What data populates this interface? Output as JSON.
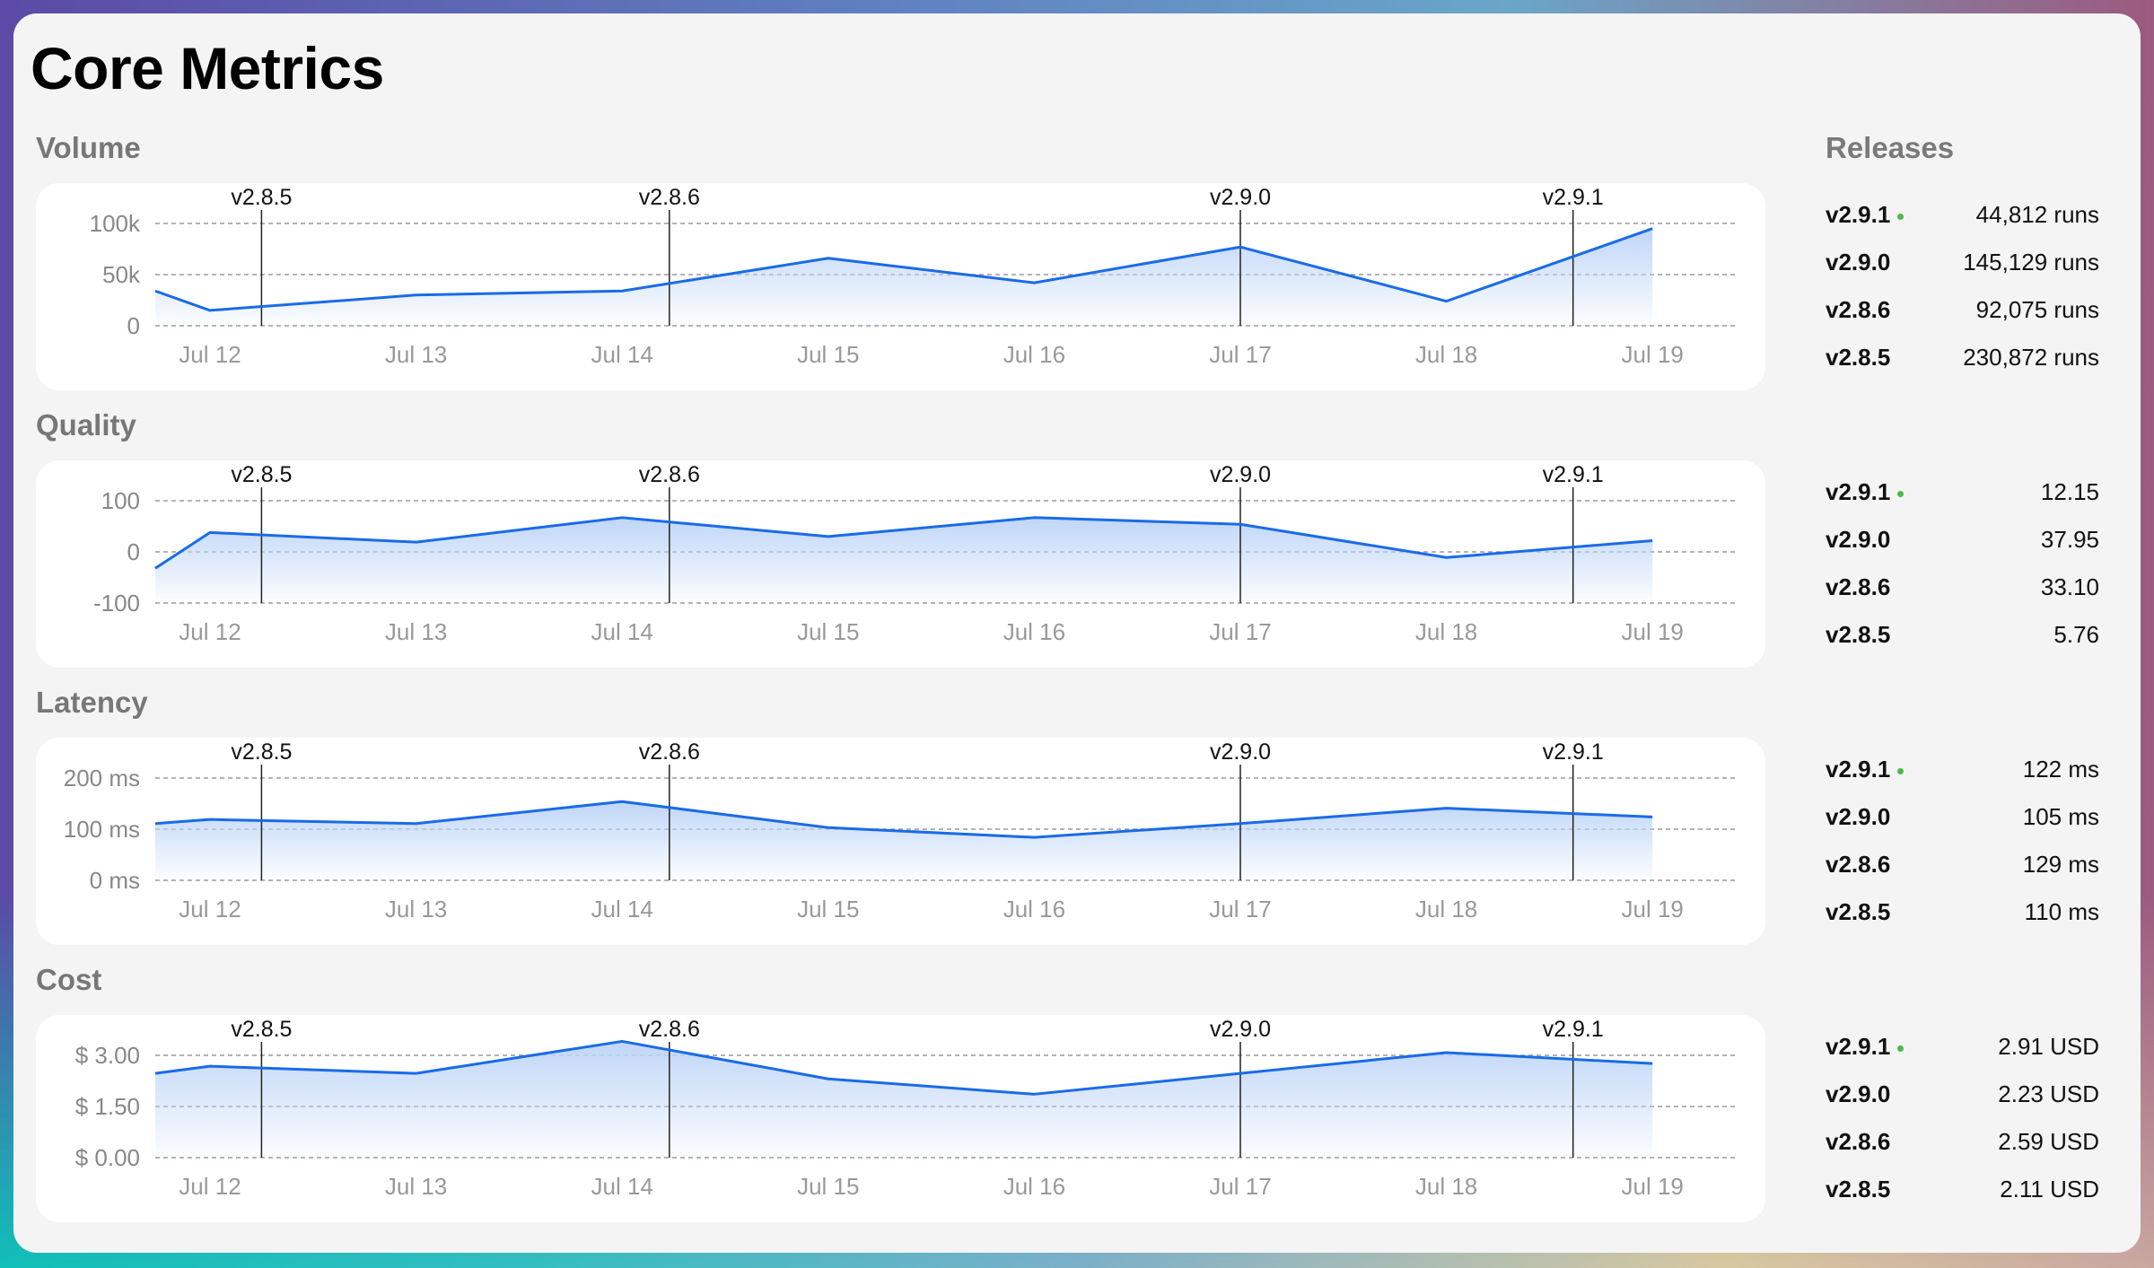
{
  "page": {
    "title": "Core Metrics"
  },
  "colors": {
    "line": "#1a6be8",
    "fill_top": "#bcd4f7",
    "grid": "#9a9a9a",
    "live_dot": "#4cbb45",
    "release_line": "#222222"
  },
  "releases_panel": {
    "title": "Releases"
  },
  "x_ticks": [
    "Jul 12",
    "Jul 13",
    "Jul 14",
    "Jul 15",
    "Jul 16",
    "Jul 17",
    "Jul 18",
    "Jul 19"
  ],
  "release_markers": [
    {
      "label": "v2.8.5",
      "at": "Jul 12 06:00"
    },
    {
      "label": "v2.8.6",
      "at": "Jul 14 05:30"
    },
    {
      "label": "v2.9.0",
      "at": "Jul 17 00:00"
    },
    {
      "label": "v2.9.1",
      "at": "Jul 18 14:45"
    }
  ],
  "chart_data": [
    {
      "type": "area",
      "title": "Volume",
      "ylim": [
        0,
        100000
      ],
      "y_ticks": [
        "100k",
        "50k",
        "0"
      ],
      "y_tick_values": [
        100000,
        50000,
        0
      ],
      "grid": true,
      "x": [
        "Jul 11 17:37",
        "Jul 12",
        "Jul 13",
        "Jul 14",
        "Jul 15",
        "Jul 16",
        "Jul 17",
        "Jul 18",
        "Jul 19"
      ],
      "values": [
        34000,
        15000,
        30000,
        34000,
        66000,
        42000,
        77000,
        24000,
        95000
      ],
      "releases": [
        {
          "version": "v2.9.1",
          "value": "44,812 runs",
          "live": true
        },
        {
          "version": "v2.9.0",
          "value": "145,129 runs"
        },
        {
          "version": "v2.8.6",
          "value": "92,075 runs"
        },
        {
          "version": "v2.8.5",
          "value": "230,872 runs"
        }
      ]
    },
    {
      "type": "area",
      "title": "Quality",
      "ylim": [
        -100,
        100
      ],
      "y_ticks": [
        "100",
        "0",
        "-100"
      ],
      "y_tick_values": [
        100,
        0,
        -100
      ],
      "grid": true,
      "x": [
        "Jul 11 17:37",
        "Jul 12",
        "Jul 13",
        "Jul 14",
        "Jul 15",
        "Jul 16",
        "Jul 17",
        "Jul 18",
        "Jul 19"
      ],
      "values": [
        -32,
        38,
        19,
        67,
        30,
        67,
        54,
        -11,
        22
      ],
      "releases": [
        {
          "version": "v2.9.1",
          "value": "12.15",
          "live": true
        },
        {
          "version": "v2.9.0",
          "value": "37.95"
        },
        {
          "version": "v2.8.6",
          "value": "33.10"
        },
        {
          "version": "v2.8.5",
          "value": "5.76"
        }
      ]
    },
    {
      "type": "area",
      "title": "Latency",
      "ylim": [
        0,
        200
      ],
      "y_ticks": [
        "200 ms",
        "100 ms",
        "0 ms"
      ],
      "y_tick_values": [
        200,
        100,
        0
      ],
      "grid": true,
      "x": [
        "Jul 11 17:37",
        "Jul 12",
        "Jul 13",
        "Jul 14",
        "Jul 15",
        "Jul 16",
        "Jul 17",
        "Jul 18",
        "Jul 19"
      ],
      "values": [
        111,
        119,
        111,
        154,
        103,
        84,
        111,
        141,
        124
      ],
      "releases": [
        {
          "version": "v2.9.1",
          "value": "122 ms",
          "live": true
        },
        {
          "version": "v2.9.0",
          "value": "105 ms"
        },
        {
          "version": "v2.8.6",
          "value": "129 ms"
        },
        {
          "version": "v2.8.5",
          "value": "110 ms"
        }
      ]
    },
    {
      "type": "area",
      "title": "Cost",
      "ylim": [
        0,
        3
      ],
      "y_ticks": [
        "$ 3.00",
        "$ 1.50",
        "$ 0.00"
      ],
      "y_tick_values": [
        3,
        1.5,
        0
      ],
      "grid": true,
      "x": [
        "Jul 11 17:37",
        "Jul 12",
        "Jul 13",
        "Jul 14",
        "Jul 15",
        "Jul 16",
        "Jul 17",
        "Jul 18",
        "Jul 19"
      ],
      "values": [
        2.47,
        2.68,
        2.47,
        3.41,
        2.31,
        1.86,
        2.47,
        3.08,
        2.76
      ],
      "releases": [
        {
          "version": "v2.9.1",
          "value": "2.91 USD",
          "live": true
        },
        {
          "version": "v2.9.0",
          "value": "2.23 USD"
        },
        {
          "version": "v2.8.6",
          "value": "2.59 USD"
        },
        {
          "version": "v2.8.5",
          "value": "2.11 USD"
        }
      ]
    }
  ]
}
